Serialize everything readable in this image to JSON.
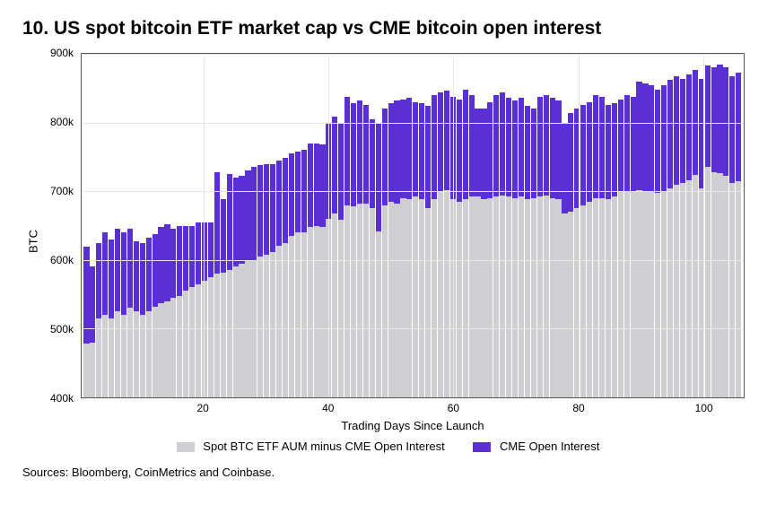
{
  "title": "10. US spot bitcoin ETF market cap vs CME bitcoin open interest",
  "sources": "Sources: Bloomberg, CoinMetrics and Coinbase.",
  "chart": {
    "type": "stacked-bar",
    "ylabel": "BTC",
    "xlabel": "Trading Days Since Launch",
    "ylim": [
      400,
      900
    ],
    "ytick_step": 100,
    "ytick_labels": [
      "400k",
      "500k",
      "600k",
      "700k",
      "800k",
      "900k"
    ],
    "xticks": [
      20,
      40,
      60,
      80,
      100
    ],
    "grid_color": "#e8e8e8",
    "border_color": "#555555",
    "background_color": "#ffffff",
    "series": [
      {
        "name": "Spot BTC ETF AUM minus CME Open Interest",
        "color": "#cfcfd1"
      },
      {
        "name": "CME Open Interest",
        "color": "#5a2fd6"
      }
    ],
    "legend_fontsize": 13,
    "title_fontsize": 21,
    "label_fontsize": 13,
    "tick_fontsize": 12,
    "data": [
      {
        "x": 1,
        "bot": 478,
        "top": 620
      },
      {
        "x": 2,
        "bot": 480,
        "top": 590
      },
      {
        "x": 3,
        "bot": 515,
        "top": 625
      },
      {
        "x": 4,
        "bot": 520,
        "top": 640
      },
      {
        "x": 5,
        "bot": 515,
        "top": 630
      },
      {
        "x": 6,
        "bot": 525,
        "top": 645
      },
      {
        "x": 7,
        "bot": 520,
        "top": 640
      },
      {
        "x": 8,
        "bot": 530,
        "top": 645
      },
      {
        "x": 9,
        "bot": 525,
        "top": 627
      },
      {
        "x": 10,
        "bot": 520,
        "top": 624
      },
      {
        "x": 11,
        "bot": 525,
        "top": 633
      },
      {
        "x": 12,
        "bot": 532,
        "top": 638
      },
      {
        "x": 13,
        "bot": 537,
        "top": 648
      },
      {
        "x": 14,
        "bot": 540,
        "top": 652
      },
      {
        "x": 15,
        "bot": 545,
        "top": 645
      },
      {
        "x": 16,
        "bot": 548,
        "top": 650
      },
      {
        "x": 17,
        "bot": 555,
        "top": 650
      },
      {
        "x": 18,
        "bot": 560,
        "top": 650
      },
      {
        "x": 19,
        "bot": 565,
        "top": 655
      },
      {
        "x": 20,
        "bot": 570,
        "top": 655
      },
      {
        "x": 21,
        "bot": 575,
        "top": 655
      },
      {
        "x": 22,
        "bot": 580,
        "top": 728
      },
      {
        "x": 23,
        "bot": 582,
        "top": 688
      },
      {
        "x": 24,
        "bot": 586,
        "top": 725
      },
      {
        "x": 25,
        "bot": 590,
        "top": 720
      },
      {
        "x": 26,
        "bot": 595,
        "top": 723
      },
      {
        "x": 27,
        "bot": 600,
        "top": 730
      },
      {
        "x": 28,
        "bot": 600,
        "top": 735
      },
      {
        "x": 29,
        "bot": 605,
        "top": 738
      },
      {
        "x": 30,
        "bot": 608,
        "top": 740
      },
      {
        "x": 31,
        "bot": 612,
        "top": 740
      },
      {
        "x": 32,
        "bot": 620,
        "top": 745
      },
      {
        "x": 33,
        "bot": 625,
        "top": 748
      },
      {
        "x": 34,
        "bot": 635,
        "top": 755
      },
      {
        "x": 35,
        "bot": 640,
        "top": 758
      },
      {
        "x": 36,
        "bot": 640,
        "top": 760
      },
      {
        "x": 37,
        "bot": 648,
        "top": 770
      },
      {
        "x": 38,
        "bot": 650,
        "top": 770
      },
      {
        "x": 39,
        "bot": 648,
        "top": 768
      },
      {
        "x": 40,
        "bot": 660,
        "top": 800
      },
      {
        "x": 41,
        "bot": 668,
        "top": 808
      },
      {
        "x": 42,
        "bot": 658,
        "top": 798
      },
      {
        "x": 43,
        "bot": 680,
        "top": 838
      },
      {
        "x": 44,
        "bot": 678,
        "top": 828
      },
      {
        "x": 45,
        "bot": 682,
        "top": 832
      },
      {
        "x": 46,
        "bot": 682,
        "top": 825
      },
      {
        "x": 47,
        "bot": 676,
        "top": 805
      },
      {
        "x": 48,
        "bot": 642,
        "top": 800
      },
      {
        "x": 49,
        "bot": 680,
        "top": 820
      },
      {
        "x": 50,
        "bot": 685,
        "top": 828
      },
      {
        "x": 51,
        "bot": 682,
        "top": 832
      },
      {
        "x": 52,
        "bot": 690,
        "top": 834
      },
      {
        "x": 53,
        "bot": 688,
        "top": 836
      },
      {
        "x": 54,
        "bot": 692,
        "top": 830
      },
      {
        "x": 55,
        "bot": 688,
        "top": 828
      },
      {
        "x": 56,
        "bot": 676,
        "top": 824
      },
      {
        "x": 57,
        "bot": 688,
        "top": 840
      },
      {
        "x": 58,
        "bot": 700,
        "top": 844
      },
      {
        "x": 59,
        "bot": 702,
        "top": 846
      },
      {
        "x": 60,
        "bot": 688,
        "top": 838
      },
      {
        "x": 61,
        "bot": 684,
        "top": 834
      },
      {
        "x": 62,
        "bot": 688,
        "top": 848
      },
      {
        "x": 63,
        "bot": 692,
        "top": 840
      },
      {
        "x": 64,
        "bot": 692,
        "top": 820
      },
      {
        "x": 65,
        "bot": 688,
        "top": 820
      },
      {
        "x": 66,
        "bot": 690,
        "top": 830
      },
      {
        "x": 67,
        "bot": 692,
        "top": 840
      },
      {
        "x": 68,
        "bot": 694,
        "top": 844
      },
      {
        "x": 69,
        "bot": 692,
        "top": 836
      },
      {
        "x": 70,
        "bot": 690,
        "top": 832
      },
      {
        "x": 71,
        "bot": 692,
        "top": 836
      },
      {
        "x": 72,
        "bot": 688,
        "top": 824
      },
      {
        "x": 73,
        "bot": 690,
        "top": 820
      },
      {
        "x": 74,
        "bot": 692,
        "top": 838
      },
      {
        "x": 75,
        "bot": 694,
        "top": 840
      },
      {
        "x": 76,
        "bot": 690,
        "top": 836
      },
      {
        "x": 77,
        "bot": 688,
        "top": 832
      },
      {
        "x": 78,
        "bot": 668,
        "top": 798
      },
      {
        "x": 79,
        "bot": 670,
        "top": 814
      },
      {
        "x": 80,
        "bot": 676,
        "top": 820
      },
      {
        "x": 81,
        "bot": 680,
        "top": 825
      },
      {
        "x": 82,
        "bot": 684,
        "top": 830
      },
      {
        "x": 83,
        "bot": 690,
        "top": 840
      },
      {
        "x": 84,
        "bot": 690,
        "top": 838
      },
      {
        "x": 85,
        "bot": 688,
        "top": 826
      },
      {
        "x": 86,
        "bot": 692,
        "top": 828
      },
      {
        "x": 87,
        "bot": 700,
        "top": 834
      },
      {
        "x": 88,
        "bot": 700,
        "top": 840
      },
      {
        "x": 89,
        "bot": 700,
        "top": 838
      },
      {
        "x": 90,
        "bot": 702,
        "top": 860
      },
      {
        "x": 91,
        "bot": 700,
        "top": 857
      },
      {
        "x": 92,
        "bot": 700,
        "top": 854
      },
      {
        "x": 93,
        "bot": 698,
        "top": 848
      },
      {
        "x": 94,
        "bot": 700,
        "top": 854
      },
      {
        "x": 95,
        "bot": 704,
        "top": 862
      },
      {
        "x": 96,
        "bot": 710,
        "top": 868
      },
      {
        "x": 97,
        "bot": 712,
        "top": 864
      },
      {
        "x": 98,
        "bot": 716,
        "top": 870
      },
      {
        "x": 99,
        "bot": 724,
        "top": 876
      },
      {
        "x": 100,
        "bot": 704,
        "top": 864
      },
      {
        "x": 101,
        "bot": 735,
        "top": 883
      },
      {
        "x": 102,
        "bot": 728,
        "top": 880
      },
      {
        "x": 103,
        "bot": 726,
        "top": 884
      },
      {
        "x": 104,
        "bot": 722,
        "top": 880
      },
      {
        "x": 105,
        "bot": 712,
        "top": 868
      },
      {
        "x": 106,
        "bot": 715,
        "top": 872
      }
    ]
  }
}
